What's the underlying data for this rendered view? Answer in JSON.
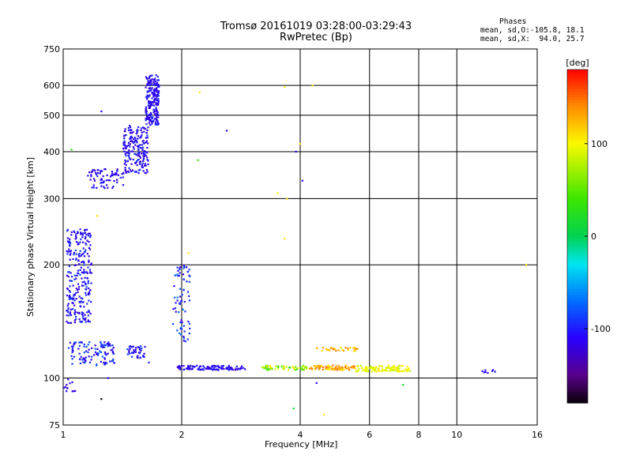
{
  "chart_data": {
    "type": "scatter",
    "title": "Tromsø 20161019 03:28:00-03:29:43",
    "subtitle": "RwPretec (Bp)",
    "xlabel": "Frequency [MHz]",
    "ylabel": "Stationary phase Virtual Height [km]",
    "x_scale": "log",
    "y_scale": "log",
    "xlim": [
      1,
      16
    ],
    "ylim": [
      75,
      750
    ],
    "x_ticks": [
      1,
      2,
      4,
      6,
      8,
      10,
      16
    ],
    "y_ticks": [
      75,
      100,
      200,
      300,
      400,
      500,
      600,
      750
    ],
    "grid": true,
    "phase_stats": {
      "title": "Phases",
      "line1": "mean, sd,O:-105.8, 18.1",
      "line2": "mean, sd,X:  94.0, 25.7"
    },
    "colorbar": {
      "label": "[deg]",
      "range": [
        -180,
        180
      ],
      "ticks": [
        100,
        0,
        -100
      ]
    },
    "clusters": [
      {
        "x": [
          1.62,
          1.75
        ],
        "y": [
          470,
          640
        ],
        "n": 220,
        "phase": -110,
        "jitter": 18
      },
      {
        "x": [
          1.42,
          1.65
        ],
        "y": [
          350,
          470
        ],
        "n": 200,
        "phase": -108,
        "jitter": 18
      },
      {
        "x": [
          1.15,
          1.42
        ],
        "y": [
          320,
          360
        ],
        "n": 70,
        "phase": -112,
        "jitter": 16
      },
      {
        "x": [
          1.02,
          1.18
        ],
        "y": [
          140,
          250
        ],
        "n": 260,
        "phase": -105,
        "jitter": 20
      },
      {
        "x": [
          1.03,
          1.35
        ],
        "y": [
          108,
          125
        ],
        "n": 110,
        "phase": -100,
        "jitter": 25
      },
      {
        "x": [
          1.45,
          1.62
        ],
        "y": [
          113,
          122
        ],
        "n": 40,
        "phase": -105,
        "jitter": 20
      },
      {
        "x": [
          1.9,
          2.1
        ],
        "y": [
          125,
          200
        ],
        "n": 70,
        "phase": -95,
        "jitter": 30
      },
      {
        "x": [
          1.95,
          2.9
        ],
        "y": [
          105,
          108
        ],
        "n": 110,
        "phase": -110,
        "jitter": 15
      },
      {
        "x": [
          3.2,
          4.2
        ],
        "y": [
          105,
          108
        ],
        "n": 60,
        "phase": 60,
        "jitter": 50
      },
      {
        "x": [
          4.2,
          5.5
        ],
        "y": [
          105,
          108
        ],
        "n": 80,
        "phase": 130,
        "jitter": 25
      },
      {
        "x": [
          5.5,
          7.6
        ],
        "y": [
          104,
          108
        ],
        "n": 110,
        "phase": 95,
        "jitter": 15
      },
      {
        "x": [
          4.4,
          5.6
        ],
        "y": [
          118,
          121
        ],
        "n": 30,
        "phase": 125,
        "jitter": 20
      },
      {
        "x": [
          1.0,
          1.08
        ],
        "y": [
          92,
          102
        ],
        "n": 12,
        "phase": -115,
        "jitter": 10
      },
      {
        "x": [
          11.5,
          12.5
        ],
        "y": [
          103,
          106
        ],
        "n": 8,
        "phase": -110,
        "jitter": 10
      }
    ],
    "scatter_points": [
      {
        "x": 1.05,
        "y": 405,
        "phase": 30
      },
      {
        "x": 1.25,
        "y": 512,
        "phase": -110
      },
      {
        "x": 2.22,
        "y": 575,
        "phase": 110
      },
      {
        "x": 2.2,
        "y": 380,
        "phase": 40
      },
      {
        "x": 2.6,
        "y": 455,
        "phase": -110
      },
      {
        "x": 3.65,
        "y": 595,
        "phase": 100
      },
      {
        "x": 4.3,
        "y": 600,
        "phase": 110
      },
      {
        "x": 4.0,
        "y": 420,
        "phase": 110
      },
      {
        "x": 3.9,
        "y": 400,
        "phase": -110
      },
      {
        "x": 3.5,
        "y": 310,
        "phase": 100
      },
      {
        "x": 4.05,
        "y": 335,
        "phase": -110
      },
      {
        "x": 3.65,
        "y": 235,
        "phase": 110
      },
      {
        "x": 3.7,
        "y": 300,
        "phase": 110
      },
      {
        "x": 15.0,
        "y": 200,
        "phase": 110
      },
      {
        "x": 1.22,
        "y": 270,
        "phase": 110
      },
      {
        "x": 2.08,
        "y": 215,
        "phase": 110
      },
      {
        "x": 3.85,
        "y": 83,
        "phase": 10
      },
      {
        "x": 4.6,
        "y": 80,
        "phase": 110
      },
      {
        "x": 4.4,
        "y": 97,
        "phase": -110
      },
      {
        "x": 1.25,
        "y": 88,
        "phase": -180
      },
      {
        "x": 7.3,
        "y": 96,
        "phase": 10
      },
      {
        "x": 1.65,
        "y": 110,
        "phase": -100
      },
      {
        "x": 1.3,
        "y": 100,
        "phase": -110
      }
    ]
  },
  "colors": {
    "grid": "#000000",
    "axis": "#000000",
    "background": "#ffffff"
  }
}
